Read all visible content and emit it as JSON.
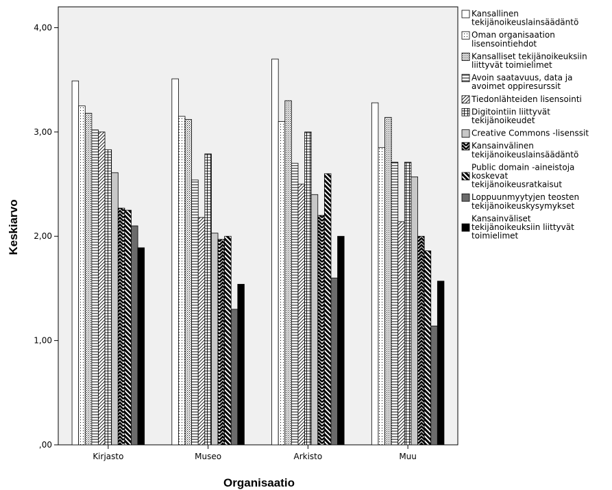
{
  "chart_data": {
    "type": "bar",
    "xlabel": "Organisaatio",
    "ylabel": "Keskiarvo",
    "ylim": [
      0,
      4.2
    ],
    "yticks": [
      {
        "value": 0,
        "label": ",00"
      },
      {
        "value": 1,
        "label": "1,00"
      },
      {
        "value": 2,
        "label": "2,00"
      },
      {
        "value": 3,
        "label": "3,00"
      },
      {
        "value": 4,
        "label": "4,00"
      }
    ],
    "categories": [
      "Kirjasto",
      "Museo",
      "Arkisto",
      "Muu"
    ],
    "legend_position": "right",
    "background_color": "#f0f0f0",
    "series": [
      {
        "name": "Kansallinen tekijänoikeuslainsäädäntö",
        "label_lines": [
          "Kansallinen",
          "tekijänoikeuslainsäädäntö"
        ],
        "pattern": "white",
        "values": [
          3.49,
          3.51,
          3.7,
          3.28
        ]
      },
      {
        "name": "Oman organisaation lisensointiehdot",
        "label_lines": [
          "Oman organisaation",
          "lisensointiehdot"
        ],
        "pattern": "sparse-dots",
        "values": [
          3.25,
          3.15,
          3.1,
          2.85
        ]
      },
      {
        "name": "Kansalliset tekijänoikeuksiin liittyvät toimielimet",
        "label_lines": [
          "Kansalliset tekijänoikeuksiin",
          "liittyvät toimielimet"
        ],
        "pattern": "dense-dots",
        "values": [
          3.18,
          3.12,
          3.3,
          3.14
        ]
      },
      {
        "name": "Avoin saatavuus, data ja avoimet oppiresurssit",
        "label_lines": [
          "Avoin saatavuus, data ja",
          "avoimet oppiresurssit"
        ],
        "pattern": "horizontal",
        "values": [
          3.02,
          2.54,
          2.7,
          2.71
        ]
      },
      {
        "name": "Tiedonlähteiden lisensointi",
        "label_lines": [
          "Tiedonlähteiden lisensointi"
        ],
        "pattern": "diagonal",
        "values": [
          3.0,
          2.18,
          2.5,
          2.14
        ]
      },
      {
        "name": "Digitointiin liittyvät tekijänoikeudet",
        "label_lines": [
          "Digitointiin liittyvät",
          "tekijänoikeudet"
        ],
        "pattern": "grid",
        "values": [
          2.83,
          2.79,
          3.0,
          2.71
        ]
      },
      {
        "name": "Creative Commons -lisenssit",
        "label_lines": [
          "Creative Commons -lisenssit"
        ],
        "pattern": "gray",
        "values": [
          2.61,
          2.03,
          2.4,
          2.57
        ]
      },
      {
        "name": "Kansainvälinen tekijänoikeuslainsäädäntö",
        "label_lines": [
          "Kansainvälinen",
          "tekijänoikeuslainsäädäntö"
        ],
        "pattern": "zigzag",
        "values": [
          2.27,
          1.97,
          2.2,
          2.0
        ]
      },
      {
        "name": "Public domain -aineistoja koskevat tekijänoikeusratkaisut",
        "label_lines": [
          "Public domain -aineistoja",
          "koskevat",
          "tekijänoikeusratkaisut"
        ],
        "pattern": "thick-diagonal",
        "values": [
          2.25,
          2.0,
          2.6,
          1.86
        ]
      },
      {
        "name": "Loppuunmyytyjen teosten tekijänoikeuskysymykset",
        "label_lines": [
          "Loppuunmyytyjen teosten",
          "tekijänoikeuskysymykset"
        ],
        "pattern": "darkgray",
        "values": [
          2.1,
          1.3,
          1.6,
          1.14
        ]
      },
      {
        "name": "Kansainväliset tekijänoikeuksiin liittyvät toimielimet",
        "label_lines": [
          "Kansainväliset",
          "tekijänoikeuksiin liittyvät",
          "toimielimet"
        ],
        "pattern": "black",
        "values": [
          1.89,
          1.54,
          2.0,
          1.57
        ]
      }
    ]
  }
}
